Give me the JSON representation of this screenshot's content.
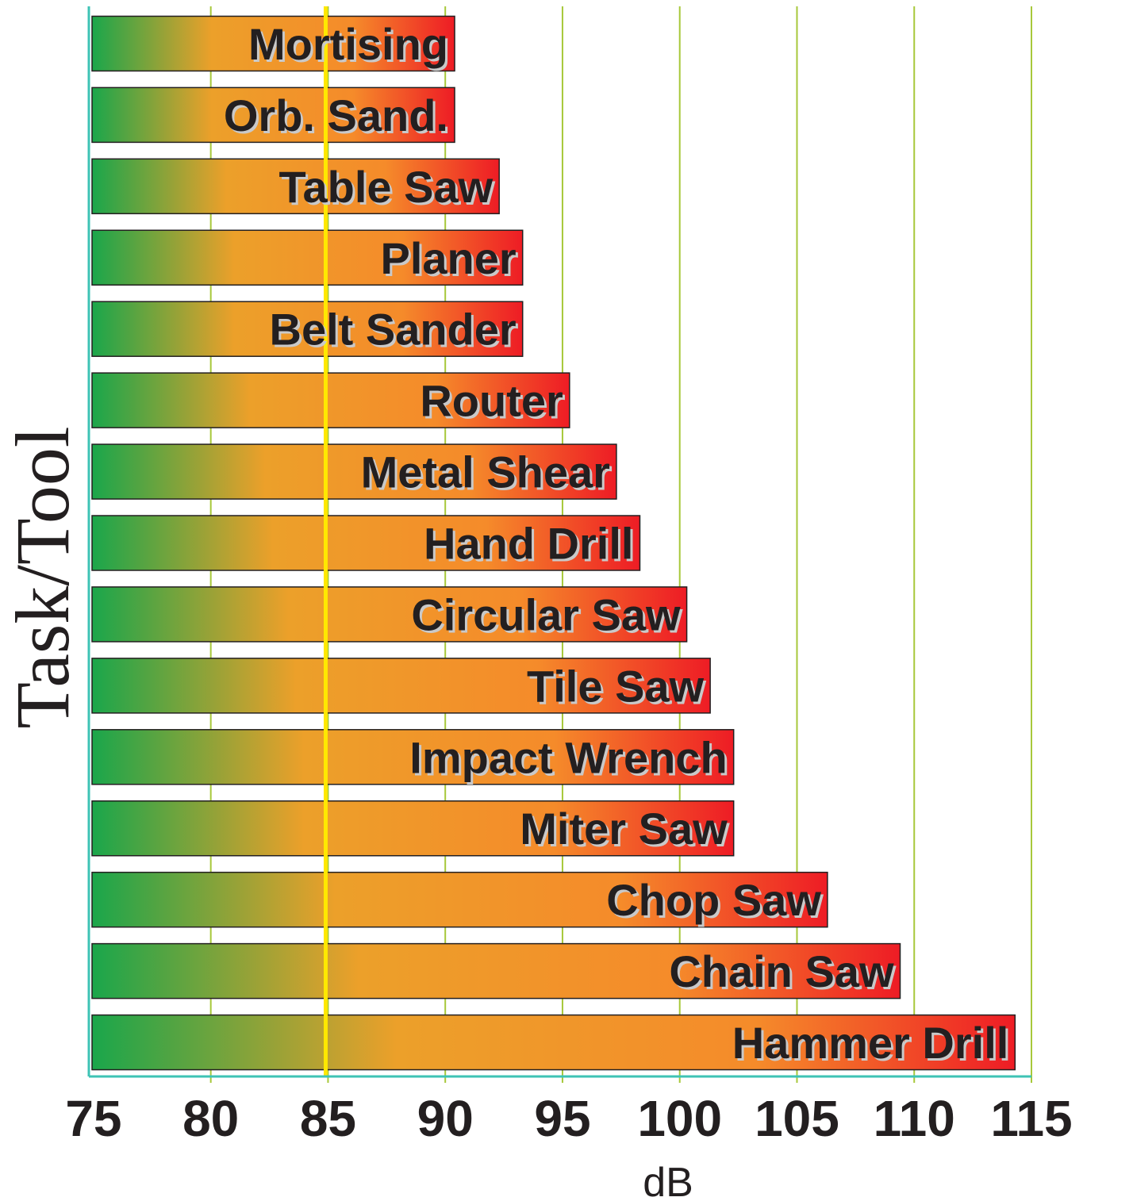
{
  "chart_data": {
    "type": "bar",
    "orientation": "horizontal",
    "categories": [
      "Mortising",
      "Orb. Sand.",
      "Table Saw",
      "Planer",
      "Belt Sander",
      "Router",
      "Metal Shear",
      "Hand Drill",
      "Circular Saw",
      "Tile Saw",
      "Impact Wrench",
      "Miter Saw",
      "Chop Saw",
      "Chain Saw",
      "Hammer Drill"
    ],
    "values": [
      90.4,
      90.4,
      92.3,
      93.3,
      93.3,
      95.3,
      97.3,
      98.3,
      100.3,
      101.3,
      102.3,
      102.3,
      106.3,
      109.4,
      114.3
    ],
    "xlabel": "dB",
    "ylabel": "Task/Tool",
    "xlim": [
      74.8,
      115
    ],
    "xticks": [
      75,
      80,
      85,
      90,
      95,
      100,
      105,
      110,
      115
    ],
    "xtick_labels": [
      "75",
      "80",
      "85",
      "90",
      "95",
      "100",
      "105",
      "110",
      "115"
    ],
    "reference_line": {
      "value": 84.9,
      "color": "#ffe800"
    },
    "grid": "vertical",
    "colors": {
      "gradient_start": "#1aa64b",
      "gradient_mid": "#eca02a",
      "gradient_orange": "#f58b2a",
      "gradient_end": "#ee1c25",
      "axis": "#3ec3b5",
      "gridline": "#a7c83a",
      "bar_border": "#231f20"
    }
  }
}
